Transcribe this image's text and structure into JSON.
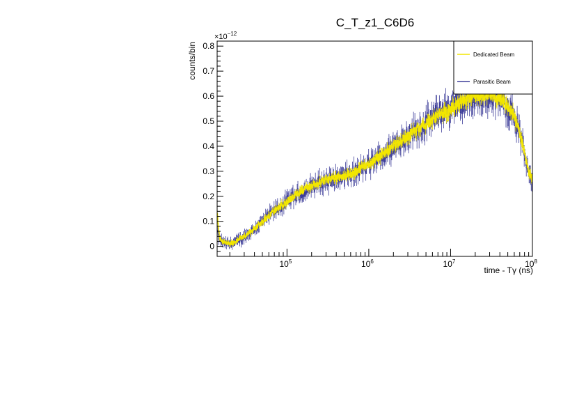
{
  "chart_data": {
    "type": "line",
    "title": "C_T_z1_C6D6",
    "xlabel": "time - Tγ (ns)",
    "ylabel": "counts/bin",
    "y_exponent_base": "×10",
    "y_exponent_power": "−12",
    "x_scale": "log",
    "xlim": [
      14000,
      100000000
    ],
    "ylim": [
      -0.04,
      0.82
    ],
    "x_ticks": [
      {
        "value": 100000,
        "base": "10",
        "exp": "5"
      },
      {
        "value": 1000000,
        "base": "10",
        "exp": "6"
      },
      {
        "value": 10000000,
        "base": "10",
        "exp": "7"
      },
      {
        "value": 100000000,
        "base": "10",
        "exp": "8"
      }
    ],
    "y_ticks": [
      {
        "value": 0,
        "label": "0"
      },
      {
        "value": 0.1,
        "label": "0.1"
      },
      {
        "value": 0.2,
        "label": "0.2"
      },
      {
        "value": 0.3,
        "label": "0.3"
      },
      {
        "value": 0.4,
        "label": "0.4"
      },
      {
        "value": 0.5,
        "label": "0.5"
      },
      {
        "value": 0.6,
        "label": "0.6"
      },
      {
        "value": 0.7,
        "label": "0.7"
      },
      {
        "value": 0.8,
        "label": "0.8"
      }
    ],
    "legend": {
      "position": "top-right"
    },
    "series": [
      {
        "name": "Dedicated Beam",
        "color": "#f2e600",
        "x": [
          14000,
          15000,
          17000,
          20000,
          25000,
          30000,
          40000,
          50000,
          70000,
          100000,
          150000,
          200000,
          300000,
          500000,
          700000,
          1000000,
          1500000,
          2000000,
          3000000,
          5000000,
          7000000,
          10000000,
          15000000,
          20000000,
          30000000,
          40000000,
          50000000,
          60000000,
          70000000,
          80000000,
          90000000,
          100000000
        ],
        "values": [
          0.14,
          0.03,
          0.015,
          0.01,
          0.025,
          0.04,
          0.07,
          0.1,
          0.14,
          0.18,
          0.22,
          0.245,
          0.265,
          0.28,
          0.3,
          0.33,
          0.37,
          0.4,
          0.44,
          0.49,
          0.52,
          0.55,
          0.58,
          0.6,
          0.61,
          0.59,
          0.56,
          0.52,
          0.45,
          0.38,
          0.3,
          0.27
        ]
      },
      {
        "name": "Parasitic Beam",
        "color": "#3d3d99",
        "x": [
          14000,
          15000,
          17000,
          20000,
          25000,
          30000,
          40000,
          50000,
          70000,
          100000,
          150000,
          200000,
          300000,
          500000,
          700000,
          1000000,
          1500000,
          2000000,
          3000000,
          5000000,
          7000000,
          10000000,
          15000000,
          20000000,
          30000000,
          40000000,
          50000000,
          60000000,
          70000000,
          80000000,
          90000000,
          100000000
        ],
        "values": [
          0.06,
          0.025,
          0.012,
          0.01,
          0.022,
          0.038,
          0.068,
          0.1,
          0.14,
          0.18,
          0.215,
          0.24,
          0.265,
          0.28,
          0.295,
          0.325,
          0.365,
          0.4,
          0.445,
          0.49,
          0.53,
          0.555,
          0.58,
          0.6,
          0.6,
          0.59,
          0.56,
          0.52,
          0.45,
          0.37,
          0.3,
          0.27
        ]
      }
    ]
  }
}
